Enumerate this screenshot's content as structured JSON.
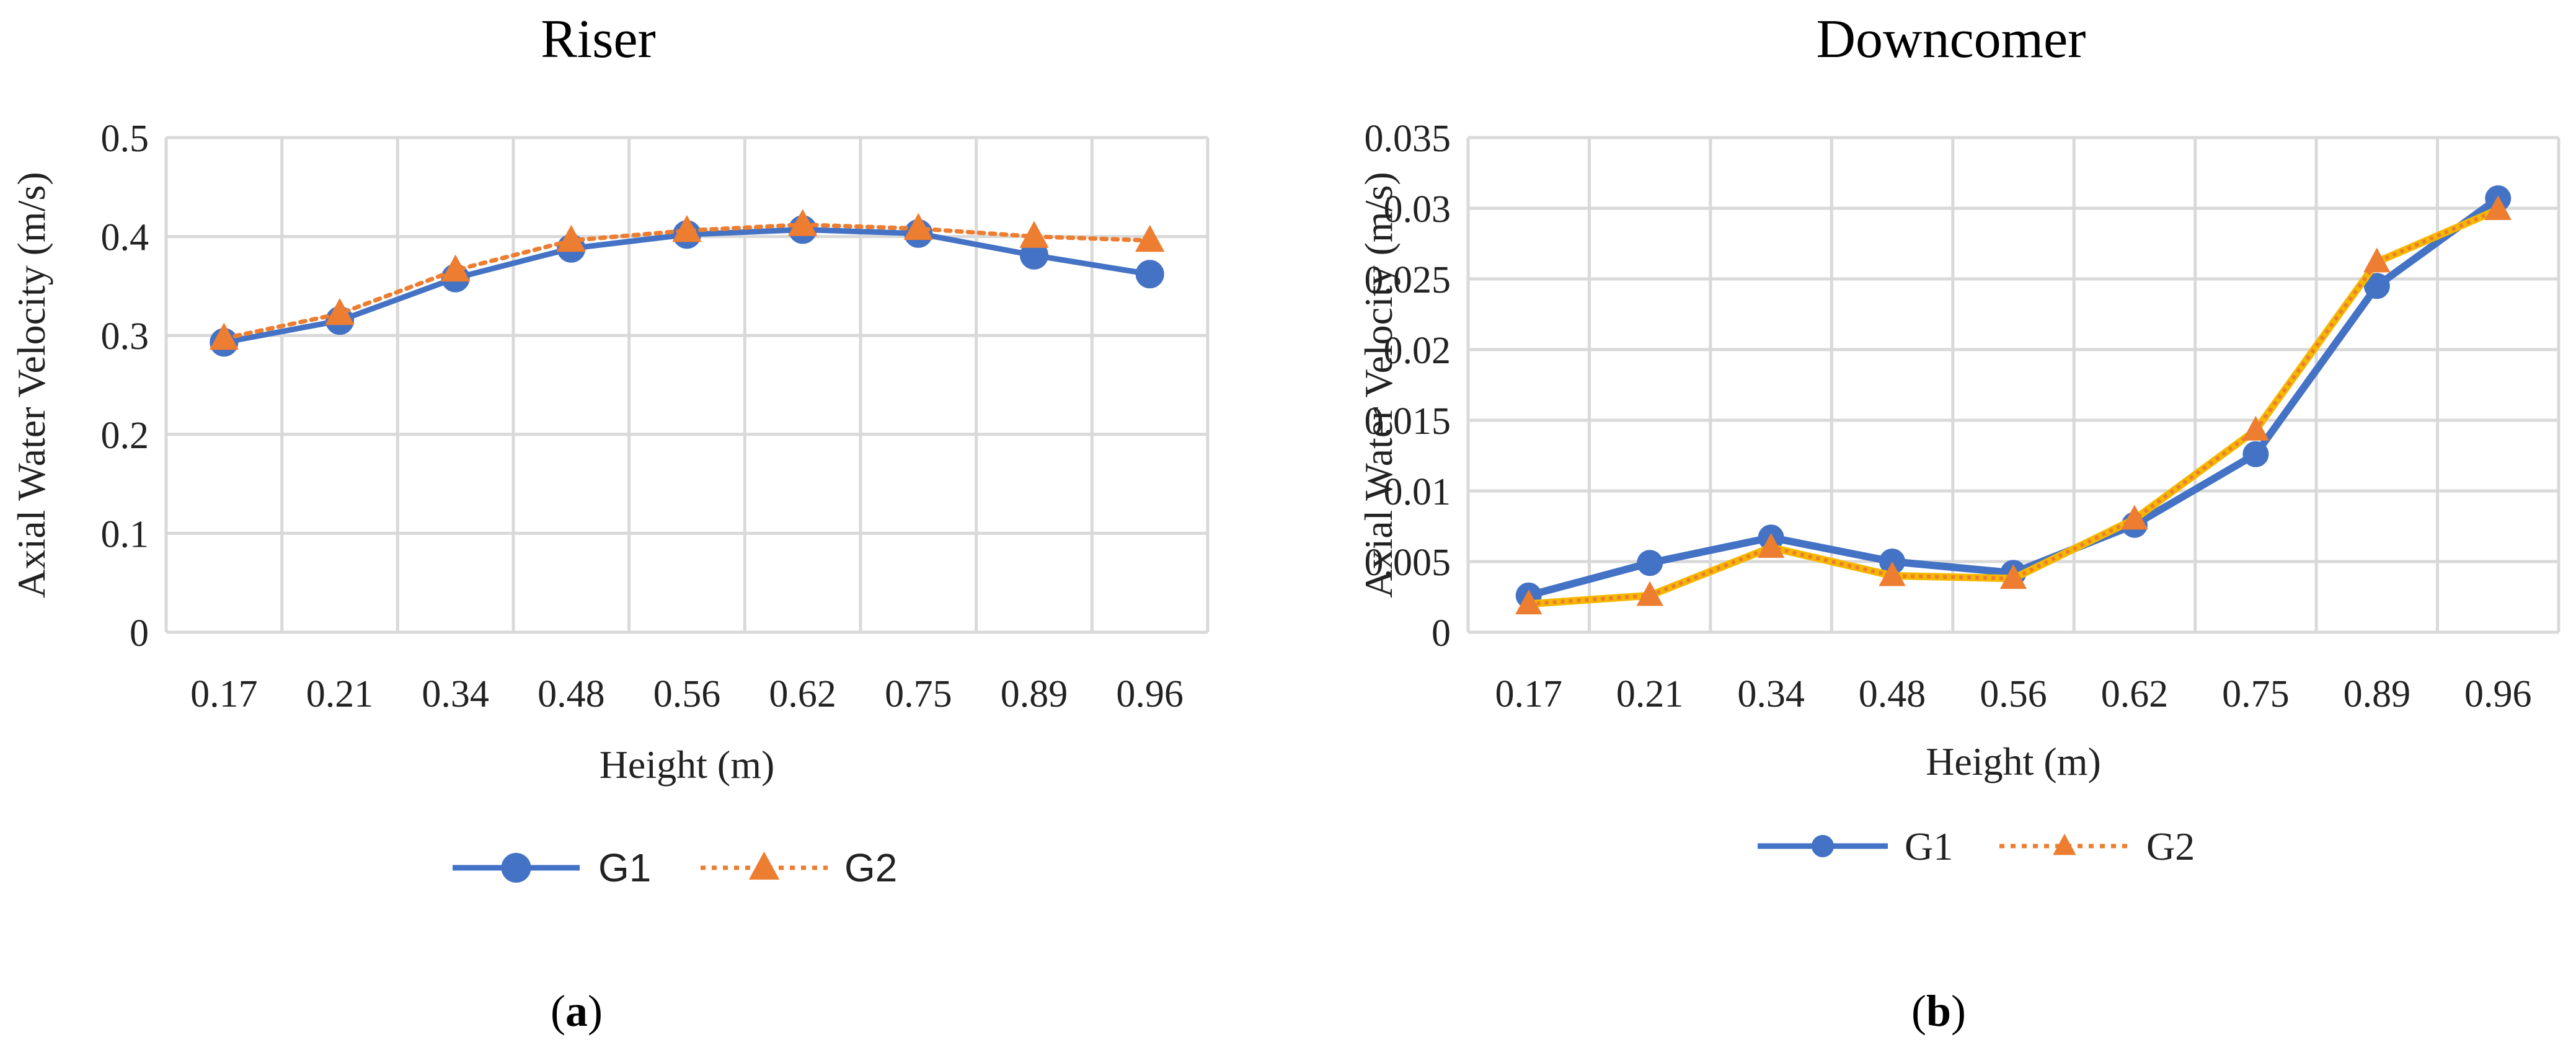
{
  "chart_data": [
    {
      "type": "line",
      "title": "Riser",
      "xlabel": "Height (m)",
      "ylabel": "Axial Water Velocity (m/s)",
      "categories": [
        "0.17",
        "0.21",
        "0.34",
        "0.48",
        "0.56",
        "0.62",
        "0.75",
        "0.89",
        "0.96"
      ],
      "ylim": [
        0,
        0.5
      ],
      "yticks": [
        "0",
        "0.1",
        "0.2",
        "0.3",
        "0.4",
        "0.5"
      ],
      "grid": true,
      "legend": "bottom",
      "panel_label": {
        "open": "(",
        "letter": "a",
        "close": ")"
      },
      "series": [
        {
          "name": "G1",
          "color": "#4472C4",
          "marker": "circle",
          "style": "solid",
          "values": [
            0.293,
            0.315,
            0.358,
            0.388,
            0.402,
            0.407,
            0.403,
            0.381,
            0.362
          ]
        },
        {
          "name": "G2",
          "color": "#ED7D31",
          "marker": "triangle",
          "style": "dotted",
          "values": [
            0.297,
            0.322,
            0.366,
            0.396,
            0.406,
            0.412,
            0.408,
            0.4,
            0.396
          ]
        }
      ]
    },
    {
      "type": "line",
      "title": "Downcomer",
      "xlabel": "Height (m)",
      "ylabel": "Axial Water Velocity (m/s)",
      "categories": [
        "0.17",
        "0.21",
        "0.34",
        "0.48",
        "0.56",
        "0.62",
        "0.75",
        "0.89",
        "0.96"
      ],
      "ylim": [
        0,
        0.035
      ],
      "yticks": [
        "0",
        "0.005",
        "0.01",
        "0.015",
        "0.02",
        "0.025",
        "0.03",
        "0.035"
      ],
      "grid": true,
      "legend": "bottom",
      "panel_label": {
        "open": "(",
        "letter": "b",
        "close": ")"
      },
      "series": [
        {
          "name": "G1",
          "color": "#4472C4",
          "marker": "circle",
          "style": "solid",
          "values": [
            0.0026,
            0.0049,
            0.0067,
            0.005,
            0.0042,
            0.0076,
            0.0126,
            0.0245,
            0.0307
          ]
        },
        {
          "name": "G2",
          "color": "#ED7D31",
          "marker": "triangle",
          "style": "dotted",
          "values": [
            0.002,
            0.0026,
            0.006,
            0.004,
            0.0038,
            0.008,
            0.0143,
            0.0262,
            0.0299
          ]
        }
      ]
    }
  ]
}
